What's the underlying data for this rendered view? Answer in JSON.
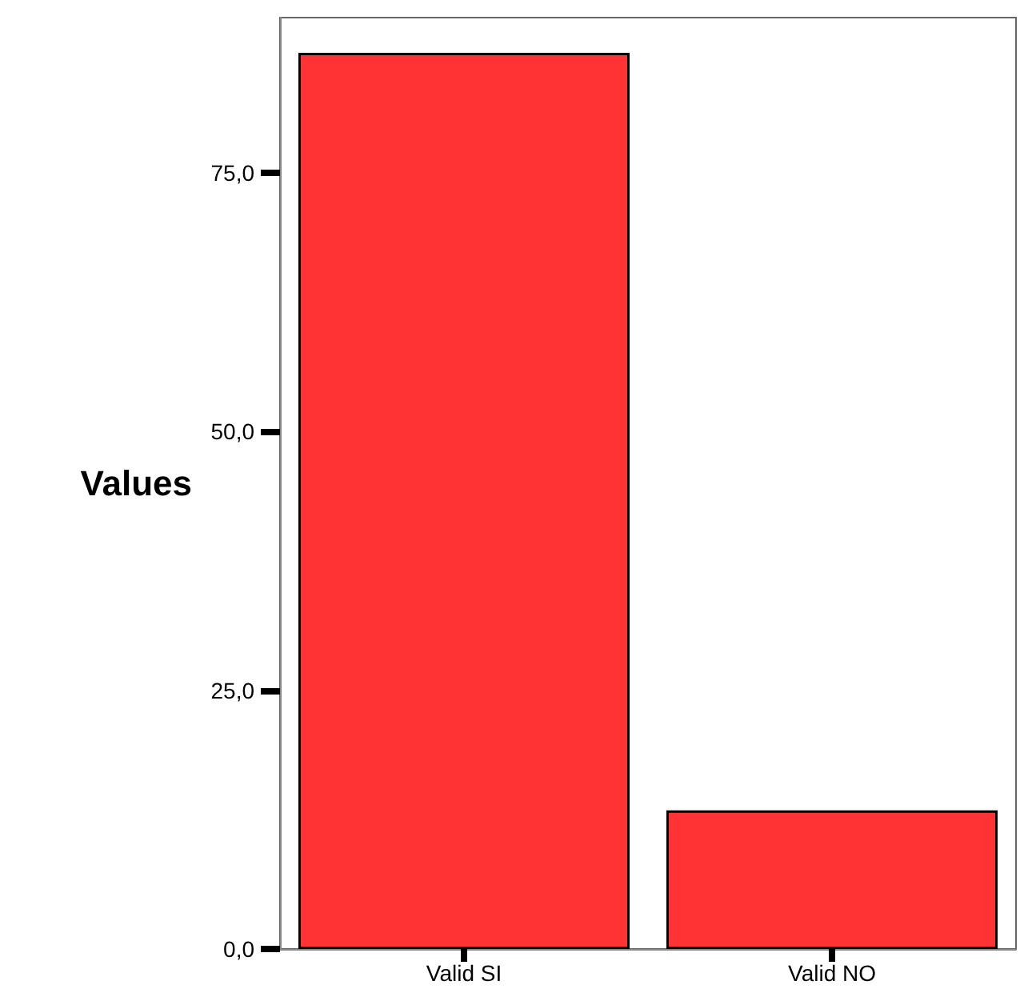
{
  "chart_data": {
    "type": "bar",
    "ylabel": "Values",
    "categories": [
      "Valid SI",
      "Valid NO"
    ],
    "series": [
      {
        "color": "#ff3333",
        "values": [
          86.6,
          13.4
        ]
      }
    ],
    "ylim": [
      0,
      90
    ],
    "yticks": [
      {
        "value": 0,
        "label": "0,0"
      },
      {
        "value": 25,
        "label": "25,0"
      },
      {
        "value": 50,
        "label": "50,0"
      },
      {
        "value": 75,
        "label": "75,0"
      }
    ],
    "grid": false
  }
}
